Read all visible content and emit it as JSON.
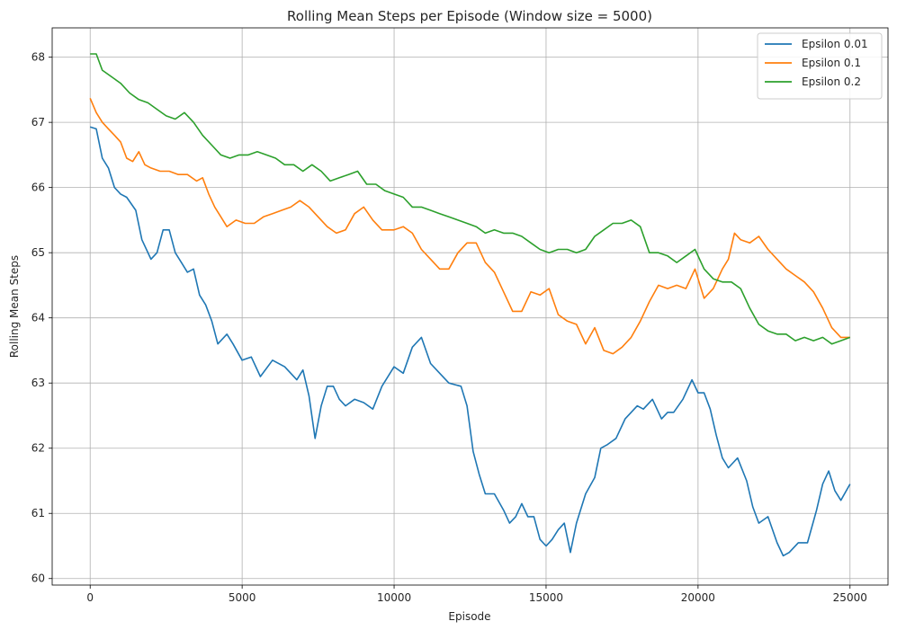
{
  "chart_data": {
    "type": "line",
    "title": "Rolling Mean Steps per Episode (Window size = 5000)",
    "xlabel": "Episode",
    "ylabel": "Rolling Mean Steps",
    "xlim": [
      -1250,
      26250
    ],
    "ylim": [
      59.9,
      68.45
    ],
    "xticks": [
      0,
      5000,
      10000,
      15000,
      20000,
      25000
    ],
    "yticks": [
      60,
      61,
      62,
      63,
      64,
      65,
      66,
      67,
      68
    ],
    "grid": true,
    "legend_position": "top-right",
    "series": [
      {
        "name": "Epsilon 0.01",
        "color": "#1f77b4",
        "points": [
          [
            0,
            66.93
          ],
          [
            200,
            66.9
          ],
          [
            400,
            66.45
          ],
          [
            600,
            66.3
          ],
          [
            800,
            66.0
          ],
          [
            1000,
            65.9
          ],
          [
            1200,
            65.85
          ],
          [
            1500,
            65.65
          ],
          [
            1700,
            65.2
          ],
          [
            2000,
            64.9
          ],
          [
            2200,
            65.0
          ],
          [
            2400,
            65.35
          ],
          [
            2600,
            65.35
          ],
          [
            2800,
            65.0
          ],
          [
            3000,
            64.85
          ],
          [
            3200,
            64.7
          ],
          [
            3400,
            64.75
          ],
          [
            3600,
            64.35
          ],
          [
            3800,
            64.2
          ],
          [
            4000,
            63.95
          ],
          [
            4200,
            63.6
          ],
          [
            4500,
            63.75
          ],
          [
            4700,
            63.6
          ],
          [
            5000,
            63.35
          ],
          [
            5300,
            63.4
          ],
          [
            5600,
            63.1
          ],
          [
            6000,
            63.35
          ],
          [
            6400,
            63.25
          ],
          [
            6800,
            63.05
          ],
          [
            7000,
            63.2
          ],
          [
            7200,
            62.8
          ],
          [
            7400,
            62.15
          ],
          [
            7600,
            62.65
          ],
          [
            7800,
            62.95
          ],
          [
            8000,
            62.95
          ],
          [
            8200,
            62.75
          ],
          [
            8400,
            62.65
          ],
          [
            8700,
            62.75
          ],
          [
            9000,
            62.7
          ],
          [
            9300,
            62.6
          ],
          [
            9600,
            62.95
          ],
          [
            10000,
            63.25
          ],
          [
            10300,
            63.15
          ],
          [
            10600,
            63.55
          ],
          [
            10900,
            63.7
          ],
          [
            11200,
            63.3
          ],
          [
            11500,
            63.15
          ],
          [
            11800,
            63.0
          ],
          [
            12200,
            62.95
          ],
          [
            12400,
            62.65
          ],
          [
            12600,
            61.95
          ],
          [
            12800,
            61.6
          ],
          [
            13000,
            61.3
          ],
          [
            13300,
            61.3
          ],
          [
            13600,
            61.05
          ],
          [
            13800,
            60.85
          ],
          [
            14000,
            60.95
          ],
          [
            14200,
            61.15
          ],
          [
            14400,
            60.95
          ],
          [
            14600,
            60.95
          ],
          [
            14800,
            60.6
          ],
          [
            15000,
            60.5
          ],
          [
            15200,
            60.6
          ],
          [
            15400,
            60.75
          ],
          [
            15600,
            60.85
          ],
          [
            15800,
            60.4
          ],
          [
            16000,
            60.85
          ],
          [
            16300,
            61.3
          ],
          [
            16600,
            61.55
          ],
          [
            16800,
            62.0
          ],
          [
            17000,
            62.05
          ],
          [
            17300,
            62.15
          ],
          [
            17600,
            62.45
          ],
          [
            18000,
            62.65
          ],
          [
            18200,
            62.6
          ],
          [
            18500,
            62.75
          ],
          [
            18800,
            62.45
          ],
          [
            19000,
            62.55
          ],
          [
            19200,
            62.55
          ],
          [
            19500,
            62.75
          ],
          [
            19800,
            63.05
          ],
          [
            20000,
            62.85
          ],
          [
            20200,
            62.85
          ],
          [
            20400,
            62.6
          ],
          [
            20600,
            62.2
          ],
          [
            20800,
            61.85
          ],
          [
            21000,
            61.7
          ],
          [
            21300,
            61.85
          ],
          [
            21600,
            61.5
          ],
          [
            21800,
            61.1
          ],
          [
            22000,
            60.85
          ],
          [
            22300,
            60.95
          ],
          [
            22600,
            60.55
          ],
          [
            22800,
            60.35
          ],
          [
            23000,
            60.4
          ],
          [
            23300,
            60.55
          ],
          [
            23600,
            60.55
          ],
          [
            23900,
            61.05
          ],
          [
            24100,
            61.45
          ],
          [
            24300,
            61.65
          ],
          [
            24500,
            61.35
          ],
          [
            24700,
            61.2
          ],
          [
            25000,
            61.45
          ]
        ]
      },
      {
        "name": "Epsilon 0.1",
        "color": "#ff7f0e",
        "points": [
          [
            0,
            67.37
          ],
          [
            200,
            67.15
          ],
          [
            400,
            67.0
          ],
          [
            600,
            66.9
          ],
          [
            800,
            66.8
          ],
          [
            1000,
            66.7
          ],
          [
            1200,
            66.45
          ],
          [
            1400,
            66.4
          ],
          [
            1600,
            66.55
          ],
          [
            1800,
            66.35
          ],
          [
            2000,
            66.3
          ],
          [
            2300,
            66.25
          ],
          [
            2600,
            66.25
          ],
          [
            2900,
            66.2
          ],
          [
            3200,
            66.2
          ],
          [
            3500,
            66.1
          ],
          [
            3700,
            66.15
          ],
          [
            3900,
            65.9
          ],
          [
            4100,
            65.7
          ],
          [
            4300,
            65.55
          ],
          [
            4500,
            65.4
          ],
          [
            4800,
            65.5
          ],
          [
            5100,
            65.45
          ],
          [
            5400,
            65.45
          ],
          [
            5700,
            65.55
          ],
          [
            6000,
            65.6
          ],
          [
            6300,
            65.65
          ],
          [
            6600,
            65.7
          ],
          [
            6900,
            65.8
          ],
          [
            7200,
            65.7
          ],
          [
            7500,
            65.55
          ],
          [
            7800,
            65.4
          ],
          [
            8100,
            65.3
          ],
          [
            8400,
            65.35
          ],
          [
            8700,
            65.6
          ],
          [
            9000,
            65.7
          ],
          [
            9300,
            65.5
          ],
          [
            9600,
            65.35
          ],
          [
            10000,
            65.35
          ],
          [
            10300,
            65.4
          ],
          [
            10600,
            65.3
          ],
          [
            10900,
            65.05
          ],
          [
            11200,
            64.9
          ],
          [
            11500,
            64.75
          ],
          [
            11800,
            64.75
          ],
          [
            12100,
            65.0
          ],
          [
            12400,
            65.15
          ],
          [
            12700,
            65.15
          ],
          [
            13000,
            64.85
          ],
          [
            13300,
            64.7
          ],
          [
            13600,
            64.4
          ],
          [
            13900,
            64.1
          ],
          [
            14200,
            64.1
          ],
          [
            14500,
            64.4
          ],
          [
            14800,
            64.35
          ],
          [
            15100,
            64.45
          ],
          [
            15400,
            64.05
          ],
          [
            15700,
            63.95
          ],
          [
            16000,
            63.9
          ],
          [
            16300,
            63.6
          ],
          [
            16600,
            63.85
          ],
          [
            16900,
            63.5
          ],
          [
            17200,
            63.45
          ],
          [
            17500,
            63.55
          ],
          [
            17800,
            63.7
          ],
          [
            18100,
            63.95
          ],
          [
            18400,
            64.25
          ],
          [
            18700,
            64.5
          ],
          [
            19000,
            64.45
          ],
          [
            19300,
            64.5
          ],
          [
            19600,
            64.45
          ],
          [
            19900,
            64.75
          ],
          [
            20200,
            64.3
          ],
          [
            20500,
            64.45
          ],
          [
            20800,
            64.75
          ],
          [
            21000,
            64.9
          ],
          [
            21200,
            65.3
          ],
          [
            21400,
            65.2
          ],
          [
            21700,
            65.15
          ],
          [
            22000,
            65.25
          ],
          [
            22300,
            65.05
          ],
          [
            22600,
            64.9
          ],
          [
            22900,
            64.75
          ],
          [
            23200,
            64.65
          ],
          [
            23500,
            64.55
          ],
          [
            23800,
            64.4
          ],
          [
            24100,
            64.15
          ],
          [
            24400,
            63.85
          ],
          [
            24700,
            63.7
          ],
          [
            25000,
            63.7
          ]
        ]
      },
      {
        "name": "Epsilon 0.2",
        "color": "#2ca02c",
        "points": [
          [
            0,
            68.05
          ],
          [
            200,
            68.05
          ],
          [
            400,
            67.8
          ],
          [
            700,
            67.7
          ],
          [
            1000,
            67.6
          ],
          [
            1300,
            67.45
          ],
          [
            1600,
            67.35
          ],
          [
            1900,
            67.3
          ],
          [
            2200,
            67.2
          ],
          [
            2500,
            67.1
          ],
          [
            2800,
            67.05
          ],
          [
            3100,
            67.15
          ],
          [
            3400,
            67.0
          ],
          [
            3700,
            66.8
          ],
          [
            4000,
            66.65
          ],
          [
            4300,
            66.5
          ],
          [
            4600,
            66.45
          ],
          [
            4900,
            66.5
          ],
          [
            5200,
            66.5
          ],
          [
            5500,
            66.55
          ],
          [
            5800,
            66.5
          ],
          [
            6100,
            66.45
          ],
          [
            6400,
            66.35
          ],
          [
            6700,
            66.35
          ],
          [
            7000,
            66.25
          ],
          [
            7300,
            66.35
          ],
          [
            7600,
            66.25
          ],
          [
            7900,
            66.1
          ],
          [
            8200,
            66.15
          ],
          [
            8500,
            66.2
          ],
          [
            8800,
            66.25
          ],
          [
            9100,
            66.05
          ],
          [
            9400,
            66.05
          ],
          [
            9700,
            65.95
          ],
          [
            10000,
            65.9
          ],
          [
            10300,
            65.85
          ],
          [
            10600,
            65.7
          ],
          [
            10900,
            65.7
          ],
          [
            11200,
            65.65
          ],
          [
            11500,
            65.6
          ],
          [
            11800,
            65.55
          ],
          [
            12100,
            65.5
          ],
          [
            12400,
            65.45
          ],
          [
            12700,
            65.4
          ],
          [
            13000,
            65.3
          ],
          [
            13300,
            65.35
          ],
          [
            13600,
            65.3
          ],
          [
            13900,
            65.3
          ],
          [
            14200,
            65.25
          ],
          [
            14500,
            65.15
          ],
          [
            14800,
            65.05
          ],
          [
            15100,
            65.0
          ],
          [
            15400,
            65.05
          ],
          [
            15700,
            65.05
          ],
          [
            16000,
            65.0
          ],
          [
            16300,
            65.05
          ],
          [
            16600,
            65.25
          ],
          [
            16900,
            65.35
          ],
          [
            17200,
            65.45
          ],
          [
            17500,
            65.45
          ],
          [
            17800,
            65.5
          ],
          [
            18100,
            65.4
          ],
          [
            18400,
            65.0
          ],
          [
            18700,
            65.0
          ],
          [
            19000,
            64.95
          ],
          [
            19300,
            64.85
          ],
          [
            19600,
            64.95
          ],
          [
            19900,
            65.05
          ],
          [
            20200,
            64.75
          ],
          [
            20500,
            64.6
          ],
          [
            20800,
            64.55
          ],
          [
            21100,
            64.55
          ],
          [
            21400,
            64.45
          ],
          [
            21700,
            64.15
          ],
          [
            22000,
            63.9
          ],
          [
            22300,
            63.8
          ],
          [
            22600,
            63.75
          ],
          [
            22900,
            63.75
          ],
          [
            23200,
            63.65
          ],
          [
            23500,
            63.7
          ],
          [
            23800,
            63.65
          ],
          [
            24100,
            63.7
          ],
          [
            24400,
            63.6
          ],
          [
            24700,
            63.65
          ],
          [
            25000,
            63.7
          ]
        ]
      }
    ]
  }
}
